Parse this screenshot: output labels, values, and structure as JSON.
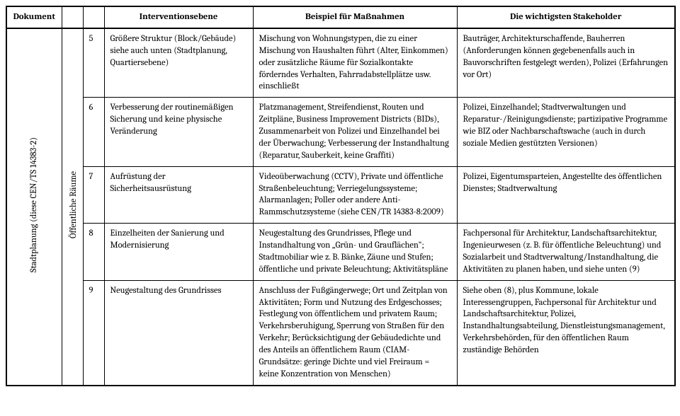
{
  "columns": {
    "doc": "Dokument",
    "level": "Interventionsebene",
    "example": "Beispiel für Maßnahmen",
    "stakeholder": "Die wichtigsten Stakeholder"
  },
  "doc_label": "Stadtplanung (diese CEN/TS 14383-2)",
  "cat_label": "Öffentliche Räume",
  "rows": [
    {
      "n": "5",
      "level": "Größere Struktur (Block/Gebäude) siehe auch unten (Stadtplanung, Quartiersebene)",
      "example": "Mischung von Wohnungstypen, die zu einer Mischung von Haushalten führt (Alter, Einkommen) oder zusätzliche Räume für Sozialkontakte förderndes Verhalten, Fahrradabstellplätze usw. einschließt",
      "stakeholder": "Bauträger, Architekturschaffende, Bauherren (Anforderungen können gegebenenfalls auch in Bauvorschriften festgelegt werden), Polizei (Erfahrungen vor Ort)"
    },
    {
      "n": "6",
      "level": "Verbesserung der routinemäßigen Sicherung und keine physische Veränderung",
      "example": "Platzmanagement, Streifendienst, Routen und Zeitpläne, Business Improvement Districts (BIDs), Zusammenarbeit von Polizei und Einzelhandel bei der Überwachung; Verbesserung der Instandhaltung (Reparatur, Sauberkeit, keine Graffiti)",
      "stakeholder": "Polizei, Einzelhandel; Stadtverwaltungen und Reparatur-/Reinigungsdienste; partizipative Programme wie BIZ oder Nachbarschaftswache (auch in durch soziale Medien gestützten Versionen)"
    },
    {
      "n": "7",
      "level": "Aufrüstung der Sicherheitsausrüstung",
      "example": "Videoüberwachung (CCTV), Private und öffentliche Straßenbeleuchtung; Verriegelungssysteme; Alarmanlagen; Poller oder andere Anti-Rammschutzsysteme (siehe CEN/TR 14383-8:2009)",
      "stakeholder": "Polizei, Eigentumsparteien, Angestellte des öffentlichen Dienstes; Stadtverwaltung"
    },
    {
      "n": "8",
      "level": "Einzelheiten der Sanierung und Modernisierung",
      "example": "Neugestaltung des Grundrisses, Pflege und Instandhaltung von „Grün- und Grauflächen\"; Stadtmobiliar wie z. B. Bänke, Zäune und Stufen; öffentliche und private Beleuchtung; Aktivitätspläne",
      "stakeholder": "Fachpersonal für Architektur, Landschaftsarchitektur, Ingenieurwesen (z. B. für öffentliche Beleuchtung) und Sozialarbeit und  Stadtverwaltung/Instandhaltung, die Aktivitäten zu planen haben, und siehe unten (9)"
    },
    {
      "n": "9",
      "level": "Neugestaltung des Grundrisses",
      "example": "Anschluss der Fußgängerwege; Ort und Zeitplan von Aktivitäten; Form und Nutzung des Erdgeschosses; Festlegung von öffentlichem und privatem Raum; Verkehrsberuhigung, Sperrung von Straßen für den Verkehr; Berücksichtigung der Gebäudedichte und des Anteils an öffentlichem Raum (CIAM-Grundsätze: geringe Dichte und viel Freiraum = keine Konzentration von Menschen)",
      "stakeholder": "Siehe oben (8), plus Kommune, lokale Interessengruppen, Fachpersonal für Architektur und Landschaftsarchitektur, Polizei, Instandhaltungsabteilung, Dienstleistungsmanagement, Verkehrsbehörden, für den öffentlichen Raum zuständige Behörden"
    }
  ]
}
